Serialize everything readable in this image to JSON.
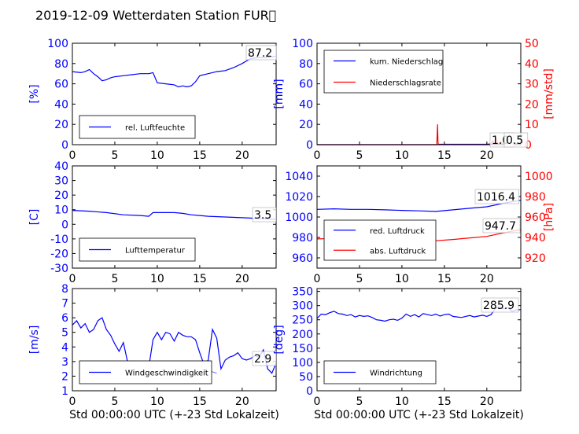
{
  "figure": {
    "title": "2019-12-09 Wetterdaten Station FUR\u0000"
  },
  "chart_data": [
    {
      "type": "line",
      "panel": "humidity",
      "ylabel": "[%]",
      "ylim": [
        0,
        100
      ],
      "yticks": [
        0,
        20,
        40,
        60,
        80,
        100
      ],
      "xlim": [
        0,
        24
      ],
      "xticks": [
        0,
        5,
        10,
        15,
        20
      ],
      "legend_placement": "lower-left",
      "value_label": "87.2",
      "series": [
        {
          "name": "rel. Luftfeuchte",
          "color": "#0000ff",
          "x": [
            0,
            1,
            1.5,
            2,
            2.5,
            3,
            3.5,
            4,
            4.5,
            5,
            6,
            7,
            8,
            9,
            9.5,
            10,
            11,
            12,
            12.5,
            13,
            13.5,
            14,
            14.5,
            15,
            16,
            17,
            18,
            19,
            20,
            21,
            22,
            23,
            24
          ],
          "y": [
            72,
            71,
            72,
            74,
            70,
            67,
            63,
            64,
            66,
            67,
            68,
            69,
            70,
            70,
            71,
            61,
            60,
            59,
            57,
            58,
            57,
            58,
            62,
            68,
            70,
            72,
            73,
            76,
            80,
            85,
            86,
            86,
            87.2
          ]
        }
      ]
    },
    {
      "type": "line",
      "panel": "precipitation",
      "ylabel": "[mm]",
      "ylabel_right": "[mm/std]",
      "ylim": [
        0,
        100
      ],
      "ylim_right": [
        0,
        50
      ],
      "yticks": [
        0,
        20,
        40,
        60,
        80,
        100
      ],
      "yticks_right": [
        0,
        10,
        20,
        30,
        40,
        50
      ],
      "xlim": [
        0,
        24
      ],
      "xticks": [
        0,
        5,
        10,
        15,
        20
      ],
      "legend_placement": "top-left",
      "value_label": "1.0",
      "value_label_right": "0.5",
      "series": [
        {
          "name": "kum. Niederschlag",
          "color": "#0000ff",
          "axis": "left",
          "x": [
            0,
            14.2,
            14.3,
            20,
            21,
            22,
            24
          ],
          "y": [
            0,
            0,
            0.4,
            0.5,
            0.8,
            1.0,
            1.0
          ]
        },
        {
          "name": "Niederschlagsrate",
          "color": "#ff0000",
          "axis": "right",
          "x": [
            0,
            14.1,
            14.2,
            14.25,
            14.3,
            20.5,
            20.7,
            20.9,
            21.1,
            21.3,
            21.6,
            21.9,
            22.2,
            24
          ],
          "y": [
            0,
            0,
            10,
            1,
            0,
            0,
            2,
            0,
            3,
            0,
            1.5,
            0,
            0.5,
            0.5
          ]
        }
      ]
    },
    {
      "type": "line",
      "panel": "temperature",
      "ylabel": "[C]",
      "ylim": [
        -30,
        40
      ],
      "yticks": [
        -30,
        -20,
        -10,
        0,
        10,
        20,
        30,
        40
      ],
      "xlim": [
        0,
        24
      ],
      "xticks": [
        0,
        5,
        10,
        15,
        20
      ],
      "legend_placement": "lower-left",
      "value_label": "3.5",
      "series": [
        {
          "name": "Lufttemperatur",
          "color": "#0000ff",
          "x": [
            0,
            2,
            4,
            6,
            8,
            9,
            9.5,
            10,
            12,
            13,
            14,
            15,
            16,
            18,
            20,
            22,
            24
          ],
          "y": [
            9.5,
            9,
            8,
            6.5,
            6,
            5.5,
            8,
            8,
            8,
            7.5,
            6.5,
            6,
            5.5,
            5,
            4.5,
            4,
            3.5
          ]
        }
      ]
    },
    {
      "type": "line",
      "panel": "pressure",
      "ylabel": "",
      "ylabel_right": "[hPa]",
      "ylim": [
        950,
        1050
      ],
      "ylim_right": [
        910,
        1010
      ],
      "yticks": [
        960,
        980,
        1000,
        1020,
        1040
      ],
      "yticks_right": [
        920,
        940,
        960,
        980,
        1000
      ],
      "xlim": [
        0,
        24
      ],
      "xticks": [
        0,
        5,
        10,
        15,
        20
      ],
      "legend_placement": "lower-left",
      "value_label": "1016.4",
      "value_label_right": "947.7",
      "series": [
        {
          "name": "red. Luftdruck",
          "color": "#0000ff",
          "axis": "left",
          "x": [
            0,
            2,
            4,
            6,
            8,
            10,
            12,
            14,
            16,
            18,
            20,
            22,
            24
          ],
          "y": [
            1007.5,
            1008,
            1007.5,
            1007.5,
            1007,
            1006.5,
            1006,
            1005.5,
            1007,
            1008.5,
            1010,
            1013.5,
            1016.4
          ]
        },
        {
          "name": "abs. Luftdruck",
          "color": "#ff0000",
          "axis": "right",
          "x": [
            0,
            2,
            4,
            6,
            8,
            10,
            12,
            14,
            16,
            18,
            20,
            22,
            24
          ],
          "y": [
            938.5,
            939,
            938.5,
            938.5,
            938,
            937.5,
            937,
            936.8,
            938,
            939.5,
            941,
            944.5,
            947.7
          ]
        }
      ]
    },
    {
      "type": "line",
      "panel": "windspeed",
      "ylabel": "[m/s]",
      "ylim": [
        1,
        8
      ],
      "yticks": [
        1,
        2,
        3,
        4,
        5,
        6,
        7,
        8
      ],
      "xlim": [
        0,
        24
      ],
      "xticks": [
        0,
        5,
        10,
        15,
        20
      ],
      "xlabel": "Std 00:00:00 UTC (+-23 Std Lokalzeit)",
      "legend_placement": "lower-left",
      "value_label": "2.9",
      "series": [
        {
          "name": "Windgeschwindigkeit",
          "color": "#0000ff",
          "x": [
            0,
            0.5,
            1,
            1.5,
            2,
            2.5,
            3,
            3.5,
            4,
            4.5,
            5,
            5.5,
            6,
            6.5,
            7,
            7.5,
            8,
            8.5,
            9,
            9.5,
            10,
            10.5,
            11,
            11.5,
            12,
            12.5,
            13,
            13.5,
            14,
            14.5,
            15,
            15.5,
            16,
            16.5,
            17,
            17.5,
            18,
            18.5,
            19,
            19.5,
            20,
            20.5,
            21,
            21.5,
            22,
            22.5,
            23,
            23.5,
            24
          ],
          "y": [
            5.5,
            5.8,
            5.3,
            5.6,
            5.0,
            5.2,
            5.8,
            6.0,
            5.2,
            4.8,
            4.2,
            3.7,
            4.3,
            3.0,
            2.4,
            2.0,
            2.1,
            2.2,
            2.6,
            4.5,
            5.0,
            4.5,
            5.0,
            4.9,
            4.4,
            5.0,
            4.8,
            4.7,
            4.7,
            4.5,
            3.6,
            2.8,
            3.1,
            5.2,
            4.6,
            2.5,
            3.1,
            3.3,
            3.4,
            3.6,
            3.2,
            3.1,
            3.2,
            3.4,
            3.3,
            3.8,
            2.5,
            2.2,
            2.9
          ]
        },
        {
          "name": "",
          "color": "#8080ff",
          "x": [
            6.5,
            7,
            7.5,
            8,
            8.5,
            9,
            15.5,
            16,
            16.5,
            17
          ],
          "y": [
            2.6,
            2.2,
            1.9,
            2.3,
            2.1,
            2.4,
            2.9,
            2.4,
            2.3,
            2.2
          ]
        }
      ]
    },
    {
      "type": "line",
      "panel": "winddirection",
      "ylabel": "[deg]",
      "ylim": [
        0,
        360
      ],
      "yticks": [
        0,
        50,
        100,
        150,
        200,
        250,
        300,
        350
      ],
      "xlim": [
        0,
        24
      ],
      "xticks": [
        0,
        5,
        10,
        15,
        20
      ],
      "xlabel": "Std 00:00:00 UTC (+-23 Std Lokalzeit)",
      "legend_placement": "lower-left",
      "value_label": "285.9",
      "series": [
        {
          "name": "Windrichtung",
          "color": "#0000ff",
          "x": [
            0,
            0.5,
            1,
            1.5,
            2,
            2.5,
            3,
            3.5,
            4,
            4.5,
            5,
            5.5,
            6,
            6.5,
            7,
            7.5,
            8,
            8.5,
            9,
            9.5,
            10,
            10.5,
            11,
            11.5,
            12,
            12.5,
            13,
            13.5,
            14,
            14.5,
            15,
            15.5,
            16,
            16.5,
            17,
            17.5,
            18,
            18.5,
            19,
            19.5,
            20,
            20.5,
            21,
            21.5,
            22,
            22.5,
            23,
            23.5,
            24
          ],
          "y": [
            255,
            270,
            268,
            275,
            280,
            272,
            270,
            265,
            268,
            260,
            265,
            262,
            264,
            258,
            250,
            248,
            245,
            250,
            252,
            248,
            256,
            270,
            262,
            268,
            260,
            272,
            268,
            265,
            270,
            263,
            268,
            270,
            262,
            260,
            258,
            262,
            265,
            260,
            263,
            266,
            262,
            268,
            290,
            295,
            288,
            292,
            280,
            285,
            285.9
          ]
        }
      ]
    }
  ]
}
